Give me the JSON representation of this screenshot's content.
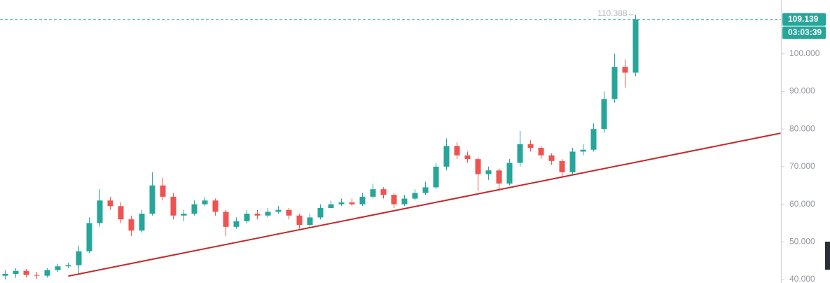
{
  "chart_data": {
    "type": "candlestick",
    "up_color": "#26a69a",
    "down_color": "#ef5350",
    "open": [
      41,
      41.5,
      42.3,
      41.2,
      41.0,
      42.5,
      43.5,
      43.8,
      47.5,
      55,
      61,
      59.5,
      56,
      53,
      57.5,
      65,
      62,
      57,
      57.5,
      60,
      61,
      58,
      54,
      55.5,
      57.5,
      57,
      58,
      58.5,
      57,
      54.5,
      56.5,
      59,
      60,
      60.5,
      60,
      62,
      64,
      62.5,
      60,
      61.5,
      63,
      64.5,
      70,
      75.5,
      73,
      72,
      68,
      69,
      65.5,
      71,
      76,
      75,
      73,
      71.5,
      68.5,
      74,
      74.5,
      80,
      88,
      96.5,
      95
    ],
    "high": [
      42.5,
      43,
      42.8,
      42,
      43,
      44.2,
      44.5,
      49,
      56.5,
      64,
      62,
      60.5,
      57,
      58.5,
      68.5,
      67,
      63,
      58.5,
      61,
      62,
      61.5,
      58.5,
      56.5,
      58.5,
      58.5,
      59,
      59.5,
      59,
      57.5,
      57.5,
      60,
      61,
      61.5,
      61.5,
      63,
      65.5,
      64.5,
      63,
      62.5,
      64,
      66,
      71,
      77.5,
      76.5,
      74,
      72.5,
      70,
      69.5,
      72,
      79.5,
      77,
      75.5,
      73.5,
      72,
      75,
      76,
      81.5,
      90,
      100,
      98.5,
      110.388
    ],
    "low": [
      40,
      40.5,
      40.5,
      40.2,
      40.5,
      42,
      43,
      41.5,
      47,
      54,
      58.5,
      55,
      51.5,
      52.5,
      57,
      61,
      56,
      55.5,
      57,
      59.5,
      57,
      51.5,
      53.5,
      55,
      56,
      56.5,
      57.5,
      56,
      53.5,
      54,
      56,
      59,
      59.5,
      59.5,
      59.5,
      61.5,
      61.5,
      59,
      59.5,
      61,
      62.5,
      64,
      69,
      72,
      71,
      63.5,
      66.5,
      63.5,
      65,
      70,
      74,
      72,
      70.5,
      67,
      68,
      73,
      74,
      79,
      87,
      91,
      94
    ],
    "close": [
      41.5,
      42.3,
      41.2,
      41.0,
      42.5,
      43.5,
      43.8,
      47.5,
      55,
      61,
      59.5,
      56,
      53,
      57.5,
      65,
      62,
      57,
      57.5,
      60,
      61,
      58,
      54,
      55.5,
      57.5,
      57,
      58,
      58.5,
      57,
      54.5,
      56.5,
      59,
      60,
      60.5,
      60,
      62,
      64,
      62.5,
      60,
      61.5,
      63,
      64.5,
      70,
      75.5,
      73,
      72,
      68,
      69,
      65.5,
      71,
      76,
      75,
      73,
      71.5,
      68.5,
      74,
      74.5,
      80,
      88,
      96.5,
      95,
      109.139
    ],
    "ylim": [
      39.07,
      114.3
    ],
    "yticks": [
      {
        "value": 40,
        "label": "40.000"
      },
      {
        "value": 50,
        "label": "50.000"
      },
      {
        "value": 60,
        "label": "60.000"
      },
      {
        "value": 70,
        "label": "70.000"
      },
      {
        "value": 80,
        "label": "80.000"
      },
      {
        "value": 90,
        "label": "90.000"
      },
      {
        "value": 100,
        "label": "100.000"
      }
    ],
    "last_price": 109.139,
    "countdown": "03:03:39",
    "high_marker": 110.388,
    "trendline": {
      "x": [
        6,
        73.8
      ],
      "y": [
        40.9,
        78.9
      ],
      "color": "#c62828"
    }
  }
}
